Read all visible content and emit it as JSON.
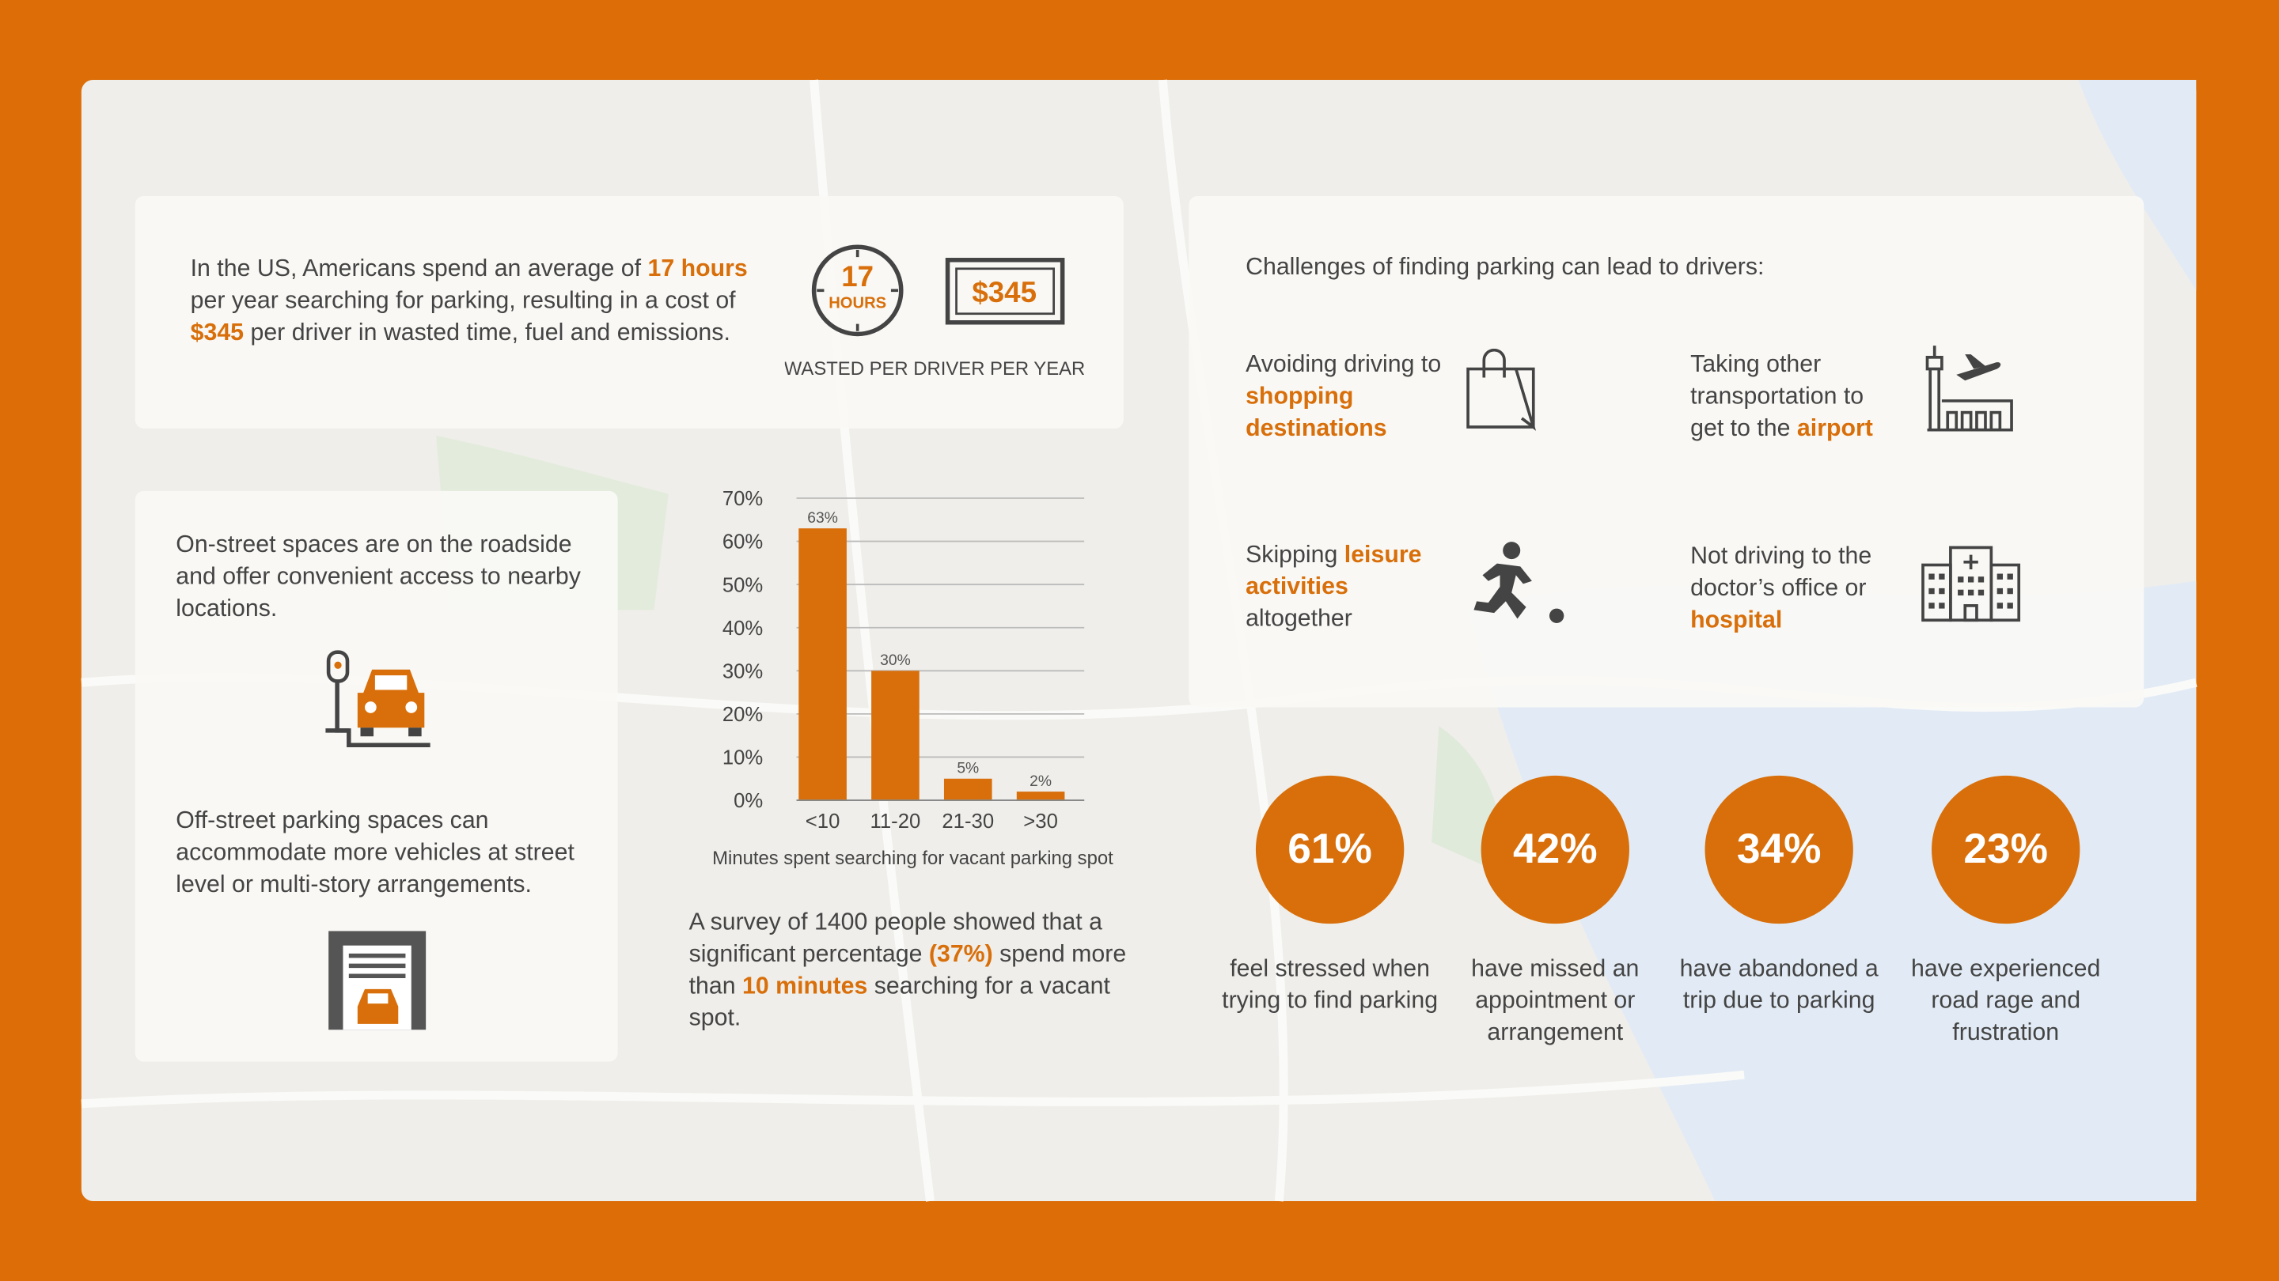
{
  "stat_panel": {
    "text": [
      {
        "text": "In the US, Americans spend an average of "
      },
      {
        "text": "17 hours",
        "highlight": true
      },
      {
        "text": " per year searching for parking, resulting in a cost of "
      },
      {
        "text": "$345",
        "highlight": true
      },
      {
        "text": " per driver in wasted time, fuel and emissions."
      }
    ],
    "hours_badge": {
      "number": "17",
      "unit": "HOURS"
    },
    "cost_badge": "$345",
    "caption": "WASTED PER DRIVER PER YEAR"
  },
  "parking_types": [
    {
      "text": "On-street spaces are on the roadside and offer convenient access to nearby locations."
    },
    {
      "text": "Off-street parking spaces can accommodate more vehicles at street level or multi-story arrangements."
    }
  ],
  "chart_data": {
    "type": "bar",
    "categories": [
      "<10",
      "11-20",
      "21-30",
      ">30"
    ],
    "values": [
      63,
      30,
      5,
      2
    ],
    "value_labels": [
      "63%",
      "30%",
      "5%",
      "2%"
    ],
    "color": "#d86f0a",
    "ylim": [
      0,
      70
    ],
    "yticks": [
      {
        "value": 0,
        "label": "0%"
      },
      {
        "value": 10,
        "label": "10%"
      },
      {
        "value": 20,
        "label": "20%"
      },
      {
        "value": 30,
        "label": "30%"
      },
      {
        "value": 40,
        "label": "40%"
      },
      {
        "value": 50,
        "label": "50%"
      },
      {
        "value": 60,
        "label": "60%"
      },
      {
        "value": 70,
        "label": "70%"
      }
    ],
    "xlabel": "Minutes spent searching for vacant parking spot",
    "grid": true
  },
  "survey": [
    {
      "text": "A survey of 1400 people showed that a significant percentage "
    },
    {
      "text": "(37%)",
      "highlight": true
    },
    {
      "text": " spend more than "
    },
    {
      "text": "10 minutes",
      "highlight": true
    },
    {
      "text": " searching for a vacant spot."
    }
  ],
  "challenges": {
    "title": "Challenges of finding parking can lead to drivers:",
    "items": [
      {
        "segments": [
          {
            "text": "Avoiding driving to "
          },
          {
            "text": "shopping destinations",
            "highlight": true
          }
        ]
      },
      {
        "segments": [
          {
            "text": "Taking other transportation to get to the "
          },
          {
            "text": "airport",
            "highlight": true
          }
        ]
      },
      {
        "segments": [
          {
            "text": "Skipping "
          },
          {
            "text": "leisure activities",
            "highlight": true
          },
          {
            "text": " altogether"
          }
        ]
      },
      {
        "segments": [
          {
            "text": "Not driving to the doctor’s office or "
          },
          {
            "text": "hospital",
            "highlight": true
          }
        ]
      }
    ]
  },
  "stats": [
    {
      "value": "61%",
      "label": "feel stressed when trying to find parking"
    },
    {
      "value": "42%",
      "label": "have missed an appointment or arrangement"
    },
    {
      "value": "34%",
      "label": "have abandoned a trip due to parking"
    },
    {
      "value": "23%",
      "label": "have experienced road rage and frustration"
    }
  ]
}
